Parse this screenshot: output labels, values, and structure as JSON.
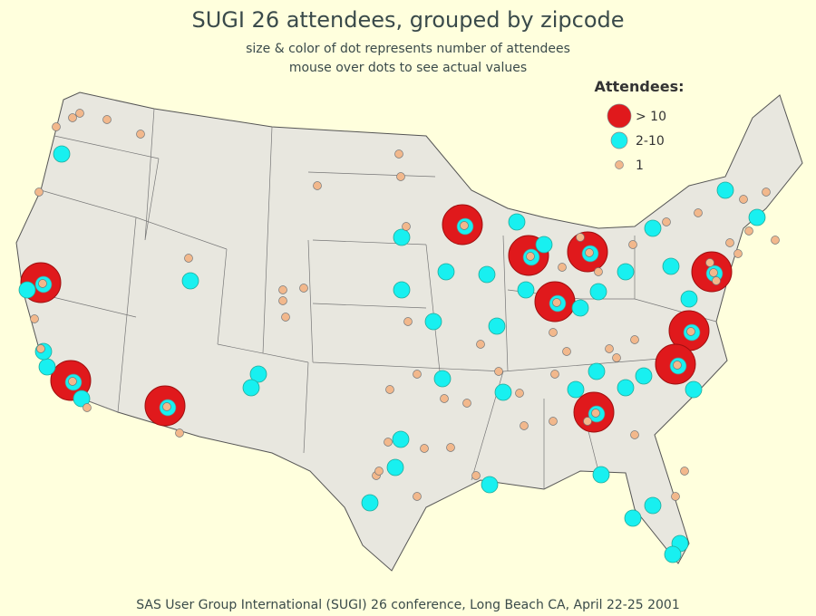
{
  "title": "SUGI 26 attendees, grouped by zipcode",
  "subtitle": [
    "size & color of dot represents number of attendees",
    "mouse over dots to see actual values"
  ],
  "legend": {
    "title": "Attendees:",
    "items": [
      {
        "label": "> 10",
        "color": "#e0191c"
      },
      {
        "label": "2-10",
        "color": "#18f0f0"
      },
      {
        "label": "1",
        "color": "#f2b88c"
      }
    ]
  },
  "footer": "SAS User Group International (SUGI) 26 conference, Long Beach CA, April 22-25 2001"
}
